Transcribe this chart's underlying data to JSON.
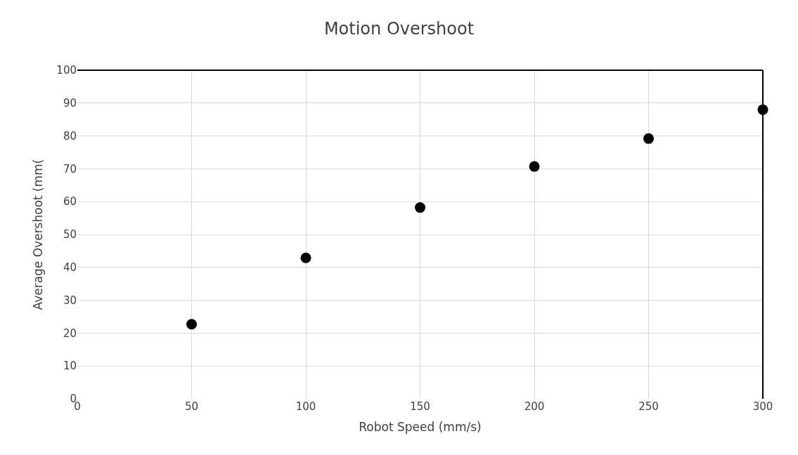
{
  "chart_data": {
    "type": "scatter",
    "title": "Motion Overshoot",
    "xlabel": "Robot Speed (mm/s)",
    "ylabel": "Average Overshoot (mm(",
    "x": [
      50,
      100,
      150,
      200,
      250,
      300
    ],
    "series": [
      {
        "color": "#000000",
        "values": [
          22.7,
          42.9,
          58.2,
          70.7,
          79.2,
          88.0
        ]
      }
    ],
    "xlim": [
      0,
      300
    ],
    "xticks": [
      0,
      50,
      100,
      150,
      200,
      250,
      300
    ],
    "ylim": [
      0,
      100
    ],
    "yticks": [
      0,
      10,
      20,
      30,
      40,
      50,
      60,
      70,
      80,
      90,
      100
    ],
    "grid": true,
    "marker": "circle"
  }
}
